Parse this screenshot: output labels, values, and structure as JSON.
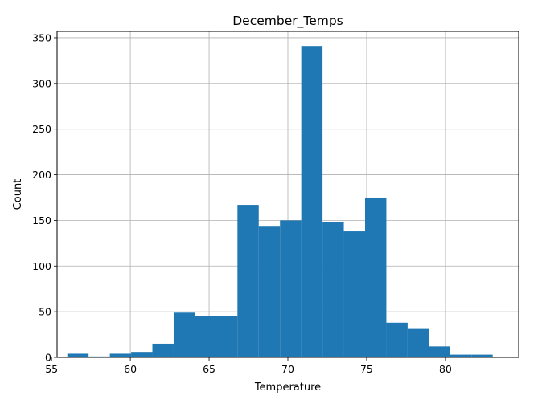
{
  "chart_data": {
    "type": "bar",
    "title": "December_Temps",
    "xlabel": "Temperature",
    "ylabel": "Count",
    "xlim": [
      55.35,
      84.65
    ],
    "ylim": [
      0,
      357
    ],
    "xticks": [
      55,
      60,
      65,
      70,
      75,
      80
    ],
    "yticks": [
      0,
      50,
      100,
      150,
      200,
      250,
      300,
      350
    ],
    "grid": true,
    "bar_color": "#1f77b4",
    "bins": [
      {
        "x0": 56.0,
        "x1": 57.35,
        "count": 4
      },
      {
        "x0": 57.35,
        "x1": 58.7,
        "count": 1
      },
      {
        "x0": 58.7,
        "x1": 60.05,
        "count": 4
      },
      {
        "x0": 60.05,
        "x1": 61.4,
        "count": 6
      },
      {
        "x0": 61.4,
        "x1": 62.75,
        "count": 15
      },
      {
        "x0": 62.75,
        "x1": 64.1,
        "count": 49
      },
      {
        "x0": 64.1,
        "x1": 65.45,
        "count": 45
      },
      {
        "x0": 65.45,
        "x1": 66.8,
        "count": 45
      },
      {
        "x0": 66.8,
        "x1": 68.15,
        "count": 167
      },
      {
        "x0": 68.15,
        "x1": 69.5,
        "count": 144
      },
      {
        "x0": 69.5,
        "x1": 70.85,
        "count": 150
      },
      {
        "x0": 70.85,
        "x1": 72.2,
        "count": 341
      },
      {
        "x0": 72.2,
        "x1": 73.55,
        "count": 148
      },
      {
        "x0": 73.55,
        "x1": 74.9,
        "count": 138
      },
      {
        "x0": 74.9,
        "x1": 76.25,
        "count": 175
      },
      {
        "x0": 76.25,
        "x1": 77.6,
        "count": 38
      },
      {
        "x0": 77.6,
        "x1": 78.95,
        "count": 32
      },
      {
        "x0": 78.95,
        "x1": 80.3,
        "count": 12
      },
      {
        "x0": 80.3,
        "x1": 81.65,
        "count": 3
      },
      {
        "x0": 81.65,
        "x1": 83.0,
        "count": 3
      }
    ]
  }
}
